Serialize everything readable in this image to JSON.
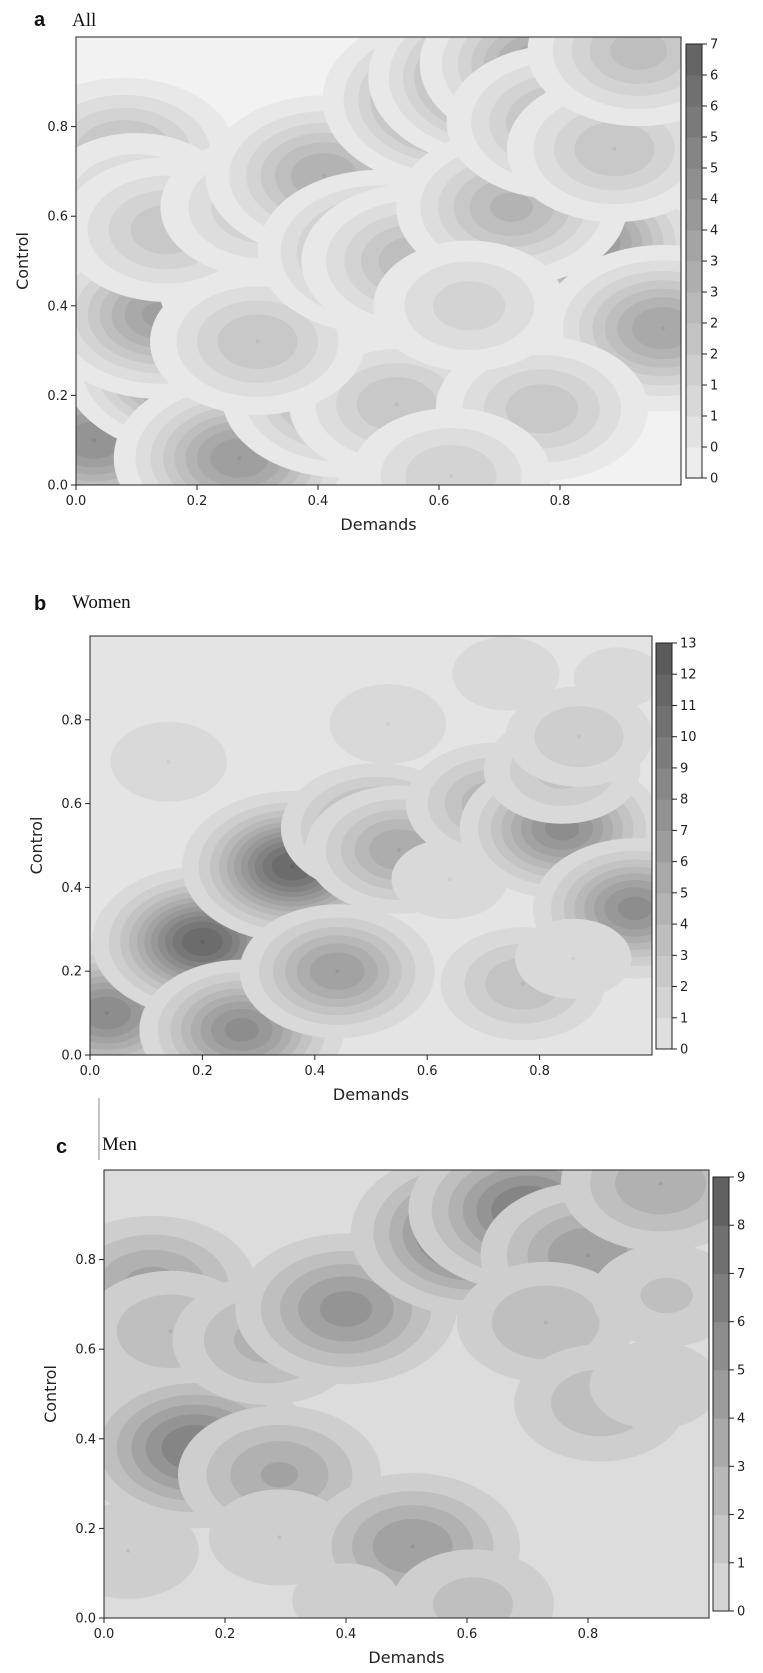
{
  "chart_data": [
    {
      "type": "contour",
      "panel_label": "a",
      "title": "All",
      "xlabel": "Demands",
      "ylabel": "Control",
      "xlim": [
        0,
        1
      ],
      "ylim": [
        0,
        1
      ],
      "x_ticks": [
        "0.0",
        "0.2",
        "0.4",
        "0.6",
        "0.8"
      ],
      "x_tick_values": [
        0,
        0.2,
        0.4,
        0.6,
        0.8
      ],
      "y_ticks": [
        "0.0",
        "0.2",
        "0.4",
        "0.6",
        "0.8"
      ],
      "y_tick_values": [
        0,
        0.2,
        0.4,
        0.6,
        0.8
      ],
      "colorbar_ticks": [
        "7",
        "6",
        "6",
        "5",
        "5",
        "4",
        "4",
        "3",
        "3",
        "2",
        "2",
        "1",
        "1",
        "0",
        "0"
      ],
      "colorbar_range": [
        0,
        7
      ],
      "levels": 14,
      "colors": {
        "low": "#f2f2f2",
        "high": "#606060"
      },
      "peaks": [
        {
          "x": 0.03,
          "y": 0.1,
          "z": 5.0
        },
        {
          "x": 0.2,
          "y": 0.27,
          "z": 6.5
        },
        {
          "x": 0.14,
          "y": 0.38,
          "z": 4.2
        },
        {
          "x": 0.36,
          "y": 0.45,
          "z": 6.5
        },
        {
          "x": 0.27,
          "y": 0.06,
          "z": 4.5
        },
        {
          "x": 0.44,
          "y": 0.2,
          "z": 3.8
        },
        {
          "x": 0.53,
          "y": 0.18,
          "z": 2.5
        },
        {
          "x": 0.3,
          "y": 0.32,
          "z": 2.5
        },
        {
          "x": 0.08,
          "y": 0.74,
          "z": 2.8
        },
        {
          "x": 0.1,
          "y": 0.64,
          "z": 1.8
        },
        {
          "x": 0.15,
          "y": 0.57,
          "z": 2.4
        },
        {
          "x": 0.31,
          "y": 0.62,
          "z": 2.2
        },
        {
          "x": 0.41,
          "y": 0.69,
          "z": 3.5
        },
        {
          "x": 0.5,
          "y": 0.52,
          "z": 3.8
        },
        {
          "x": 0.56,
          "y": 0.5,
          "z": 3.0
        },
        {
          "x": 0.62,
          "y": 0.86,
          "z": 5.0
        },
        {
          "x": 0.7,
          "y": 0.91,
          "z": 5.5
        },
        {
          "x": 0.77,
          "y": 0.94,
          "z": 4.0
        },
        {
          "x": 0.84,
          "y": 0.54,
          "z": 4.8
        },
        {
          "x": 0.72,
          "y": 0.62,
          "z": 3.2
        },
        {
          "x": 0.8,
          "y": 0.81,
          "z": 3.0
        },
        {
          "x": 0.89,
          "y": 0.75,
          "z": 2.5
        },
        {
          "x": 0.97,
          "y": 0.35,
          "z": 4.0
        },
        {
          "x": 0.77,
          "y": 0.17,
          "z": 2.4
        },
        {
          "x": 0.62,
          "y": 0.02,
          "z": 2.0
        },
        {
          "x": 0.93,
          "y": 0.97,
          "z": 2.8
        },
        {
          "x": 0.65,
          "y": 0.4,
          "z": 1.8
        }
      ]
    },
    {
      "type": "contour",
      "panel_label": "b",
      "title": "Women",
      "xlabel": "Demands",
      "ylabel": "Control",
      "xlim": [
        0,
        1
      ],
      "ylim": [
        0,
        1
      ],
      "x_ticks": [
        "0.0",
        "0.2",
        "0.4",
        "0.6",
        "0.8"
      ],
      "x_tick_values": [
        0,
        0.2,
        0.4,
        0.6,
        0.8
      ],
      "y_ticks": [
        "0.0",
        "0.2",
        "0.4",
        "0.6",
        "0.8"
      ],
      "y_tick_values": [
        0,
        0.2,
        0.4,
        0.6,
        0.8
      ],
      "colorbar_ticks": [
        "13",
        "12",
        "11",
        "10",
        "9",
        "8",
        "7",
        "6",
        "5",
        "4",
        "3",
        "2",
        "1",
        "0"
      ],
      "colorbar_range": [
        0,
        13
      ],
      "levels": 13,
      "colors": {
        "low": "#e4e4e4",
        "high": "#565656"
      },
      "peaks": [
        {
          "x": 0.03,
          "y": 0.1,
          "z": 9.0
        },
        {
          "x": 0.2,
          "y": 0.27,
          "z": 12.0
        },
        {
          "x": 0.27,
          "y": 0.06,
          "z": 8.5
        },
        {
          "x": 0.36,
          "y": 0.45,
          "z": 12.0
        },
        {
          "x": 0.44,
          "y": 0.2,
          "z": 7.0
        },
        {
          "x": 0.51,
          "y": 0.54,
          "z": 6.5
        },
        {
          "x": 0.55,
          "y": 0.49,
          "z": 6.0
        },
        {
          "x": 0.64,
          "y": 0.42,
          "z": 2.0
        },
        {
          "x": 0.72,
          "y": 0.6,
          "z": 5.0
        },
        {
          "x": 0.84,
          "y": 0.54,
          "z": 8.5
        },
        {
          "x": 0.84,
          "y": 0.68,
          "z": 3.5
        },
        {
          "x": 0.87,
          "y": 0.76,
          "z": 3.0
        },
        {
          "x": 0.97,
          "y": 0.35,
          "z": 8.5
        },
        {
          "x": 0.77,
          "y": 0.17,
          "z": 4.0
        },
        {
          "x": 0.86,
          "y": 0.23,
          "z": 2.0
        },
        {
          "x": 0.14,
          "y": 0.7,
          "z": 2.0
        },
        {
          "x": 0.53,
          "y": 0.79,
          "z": 2.0
        },
        {
          "x": 0.74,
          "y": 0.91,
          "z": 1.8
        },
        {
          "x": 0.94,
          "y": 0.9,
          "z": 1.5
        }
      ]
    },
    {
      "type": "contour",
      "panel_label": "c",
      "title": "Men",
      "xlabel": "Demands",
      "ylabel": "Control",
      "xlim": [
        0,
        1
      ],
      "ylim": [
        0,
        1
      ],
      "x_ticks": [
        "0.0",
        "0.2",
        "0.4",
        "0.6",
        "0.8"
      ],
      "x_tick_values": [
        0,
        0.2,
        0.4,
        0.6,
        0.8
      ],
      "y_ticks": [
        "0.0",
        "0.2",
        "0.4",
        "0.6",
        "0.8"
      ],
      "y_tick_values": [
        0,
        0.2,
        0.4,
        0.6,
        0.8
      ],
      "colorbar_ticks": [
        "9",
        "8",
        "7",
        "6",
        "5",
        "4",
        "3",
        "2",
        "1",
        "0"
      ],
      "colorbar_range": [
        0,
        9
      ],
      "levels": 9,
      "colors": {
        "low": "#dcdcdc",
        "high": "#5a5a5a"
      },
      "peaks": [
        {
          "x": 0.08,
          "y": 0.74,
          "z": 4.5
        },
        {
          "x": 0.15,
          "y": 0.56,
          "z": 4.0
        },
        {
          "x": 0.11,
          "y": 0.64,
          "z": 3.0
        },
        {
          "x": 0.15,
          "y": 0.38,
          "z": 7.0
        },
        {
          "x": 0.29,
          "y": 0.32,
          "z": 4.2
        },
        {
          "x": 0.04,
          "y": 0.15,
          "z": 2.0
        },
        {
          "x": 0.29,
          "y": 0.18,
          "z": 2.0
        },
        {
          "x": 0.27,
          "y": 0.62,
          "z": 3.5
        },
        {
          "x": 0.4,
          "y": 0.69,
          "z": 5.5
        },
        {
          "x": 0.51,
          "y": 0.16,
          "z": 5.0
        },
        {
          "x": 0.4,
          "y": 0.04,
          "z": 1.5
        },
        {
          "x": 0.61,
          "y": 0.03,
          "z": 2.5
        },
        {
          "x": 0.61,
          "y": 0.86,
          "z": 8.0
        },
        {
          "x": 0.7,
          "y": 0.91,
          "z": 7.2
        },
        {
          "x": 0.8,
          "y": 0.81,
          "z": 5.0
        },
        {
          "x": 0.92,
          "y": 0.97,
          "z": 4.0
        },
        {
          "x": 0.73,
          "y": 0.66,
          "z": 3.0
        },
        {
          "x": 0.82,
          "y": 0.48,
          "z": 2.8
        },
        {
          "x": 0.93,
          "y": 0.72,
          "z": 2.2
        },
        {
          "x": 0.91,
          "y": 0.52,
          "z": 1.8
        }
      ]
    }
  ]
}
